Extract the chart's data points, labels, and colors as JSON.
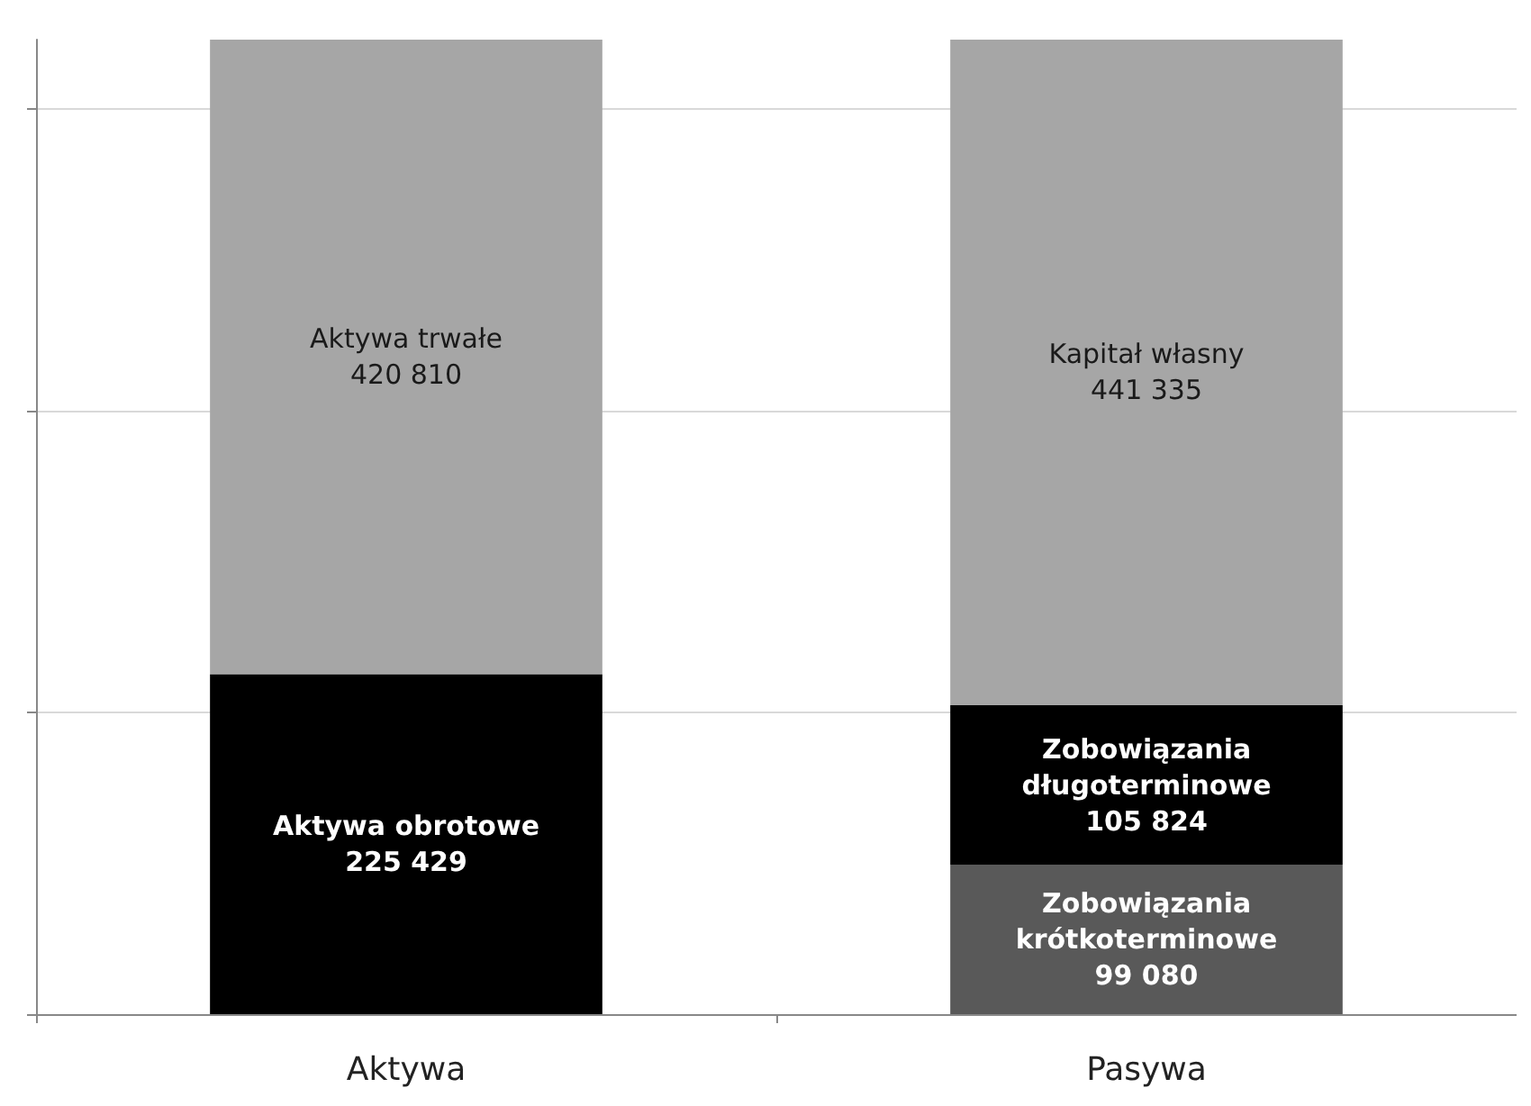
{
  "chart_data": {
    "type": "bar",
    "stacked": true,
    "categories": [
      "Aktywa",
      "Pasywa"
    ],
    "series": [
      {
        "name": "Aktywa obrotowe",
        "color": "#000000",
        "values": [
          225429,
          null
        ],
        "value_labels": [
          "225 429",
          null
        ]
      },
      {
        "name": "Aktywa trwałe",
        "color": "#a6a6a6",
        "values": [
          420810,
          null
        ],
        "value_labels": [
          "420 810",
          null
        ]
      },
      {
        "name": "Zobowiązania krótkoterminowe",
        "color": "#595959",
        "values": [
          null,
          99080
        ],
        "value_labels": [
          null,
          "99 080"
        ]
      },
      {
        "name": "Zobowiązania długoterminowe",
        "color": "#000000",
        "values": [
          null,
          105824
        ],
        "value_labels": [
          null,
          "105 824"
        ]
      },
      {
        "name": "Kapitał własny",
        "color": "#a6a6a6",
        "values": [
          null,
          441335
        ],
        "value_labels": [
          null,
          "441 335"
        ]
      }
    ],
    "ylim": [
      0,
      646239
    ],
    "yticks": [
      {
        "value": 0,
        "label": null
      },
      {
        "value": 200000,
        "label": null
      },
      {
        "value": 400000,
        "label": null
      },
      {
        "value": 600000,
        "label": null
      }
    ],
    "grid": true,
    "legend": false,
    "tick_labels": "x"
  }
}
